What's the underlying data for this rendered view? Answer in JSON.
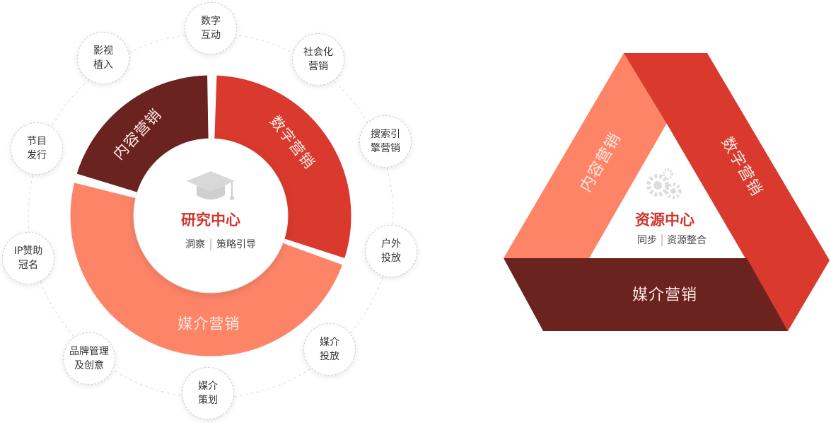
{
  "left_diagram": {
    "center": {
      "title": "研究中心",
      "sub_left": "洞察",
      "sub_right": "策略引导",
      "icon": "graduation-cap-icon"
    },
    "segments": [
      {
        "label": "内容营销",
        "color": "#6b2320"
      },
      {
        "label": "数字营销",
        "color": "#da392d"
      },
      {
        "label": "媒介营销",
        "color": "#fd8467"
      }
    ],
    "nodes": [
      {
        "line1": "数字",
        "line2": "互动"
      },
      {
        "line1": "社会化",
        "line2": "营销"
      },
      {
        "line1": "搜索引",
        "line2": "擎营销"
      },
      {
        "line1": "户外",
        "line2": "投放"
      },
      {
        "line1": "媒介",
        "line2": "投放"
      },
      {
        "line1": "媒介",
        "line2": "策划"
      },
      {
        "line1": "品牌管理",
        "line2": "及创意"
      },
      {
        "line1": "IP赞助",
        "line2": "冠名"
      },
      {
        "line1": "节目",
        "line2": "发行"
      },
      {
        "line1": "影视",
        "line2": "植入"
      }
    ]
  },
  "right_diagram": {
    "center": {
      "title": "资源中心",
      "sub_left": "同步",
      "sub_right": "资源整合",
      "icon": "gears-icon"
    },
    "sides": [
      {
        "label": "内容营销",
        "color": "#fd8467"
      },
      {
        "label": "数字营销",
        "color": "#da392d"
      },
      {
        "label": "媒介营销",
        "color": "#6b2320"
      }
    ]
  }
}
